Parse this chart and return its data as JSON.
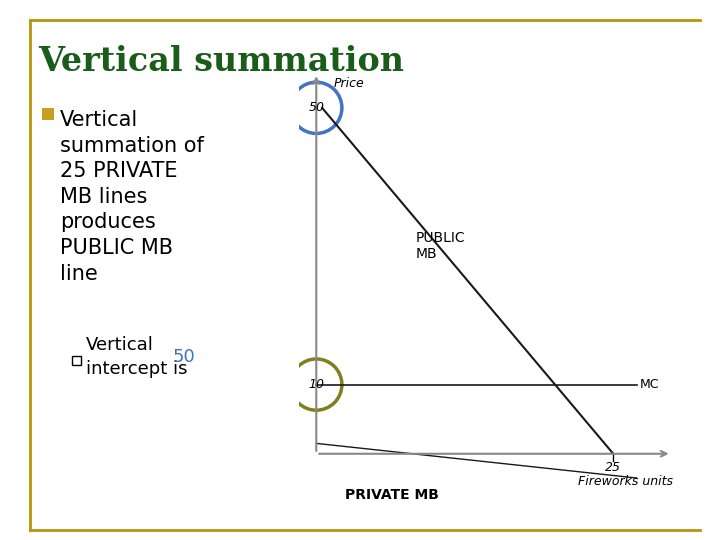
{
  "title": "Vertical summation",
  "title_color": "#1a5c1a",
  "background_color": "#ffffff",
  "bullet_lines": [
    "Vertical",
    "summation of",
    "25 PRIVATE",
    "MB lines",
    "produces",
    "PUBLIC MB",
    "line"
  ],
  "sub_bullet_text": "Vertical\nintercept is ",
  "sub_bullet_value": "50",
  "sub_bullet_value_color": "#4472c4",
  "bullet_color": "#c8a020",
  "border_color": "#b8960c",
  "chart_x_label": "Fireworks units",
  "chart_y_label": "Price",
  "mc_label": "MC",
  "public_mb_label": "PUBLIC\nMB",
  "private_mb_label": "PRIVATE MB",
  "x_tick_25": "25",
  "public_mb_intercept": 50,
  "mc_level": 10,
  "circle_50_color": "#4472c4",
  "circle_10_color": "#808020",
  "axis_color": "#888888",
  "line_color": "#1a1a1a",
  "title_fontsize": 24,
  "body_fontsize": 15,
  "sub_fontsize": 13
}
